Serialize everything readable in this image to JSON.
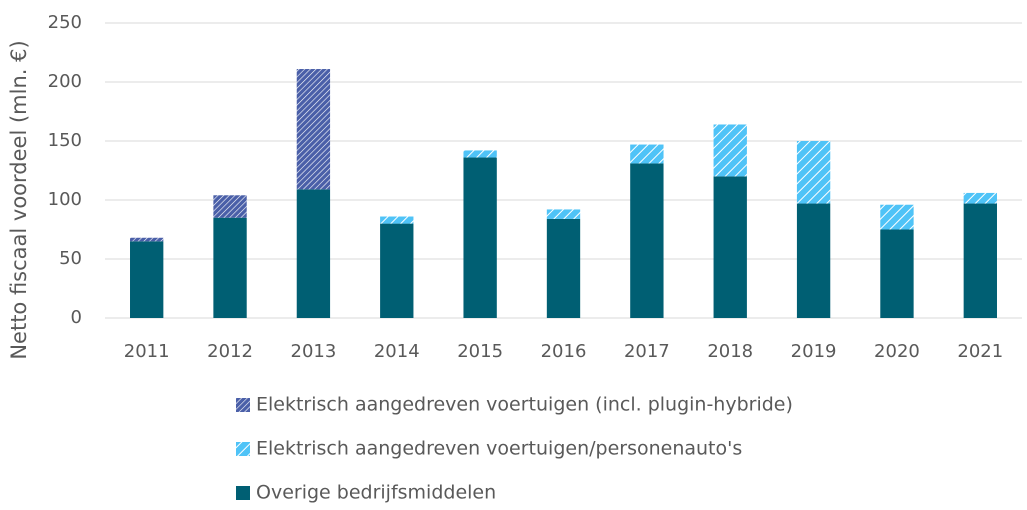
{
  "chart_data": {
    "type": "stacked_bar",
    "y_label": "Netto fiscaal voordeel (mln. €)",
    "categories": [
      "2011",
      "2012",
      "2013",
      "2014",
      "2015",
      "2016",
      "2017",
      "2018",
      "2019",
      "2020",
      "2021"
    ],
    "series": [
      {
        "name": "Elektrisch aangedreven voertuigen (incl. plugin-hybride)",
        "color": "#4a5fa8",
        "hatch": true,
        "values": [
          3,
          19,
          102,
          null,
          null,
          null,
          null,
          null,
          null,
          null,
          null
        ]
      },
      {
        "name": "Elektrisch aangedreven voertuigen/personenauto's",
        "color": "#4fc3f7",
        "hatch": true,
        "values": [
          null,
          null,
          null,
          6,
          6,
          8,
          16,
          44,
          53,
          21,
          9
        ]
      },
      {
        "name": "Overige bedrijfsmiddelen",
        "color": "#005f73",
        "hatch": false,
        "values": [
          65,
          85,
          109,
          80,
          136,
          84,
          131,
          120,
          97,
          75,
          97
        ]
      }
    ],
    "stack_order": [
      2,
      0,
      1
    ],
    "ylim": [
      0,
      250
    ],
    "yticks": [
      0,
      50,
      100,
      150,
      200,
      250
    ],
    "grid": true,
    "legend": "bottom"
  }
}
